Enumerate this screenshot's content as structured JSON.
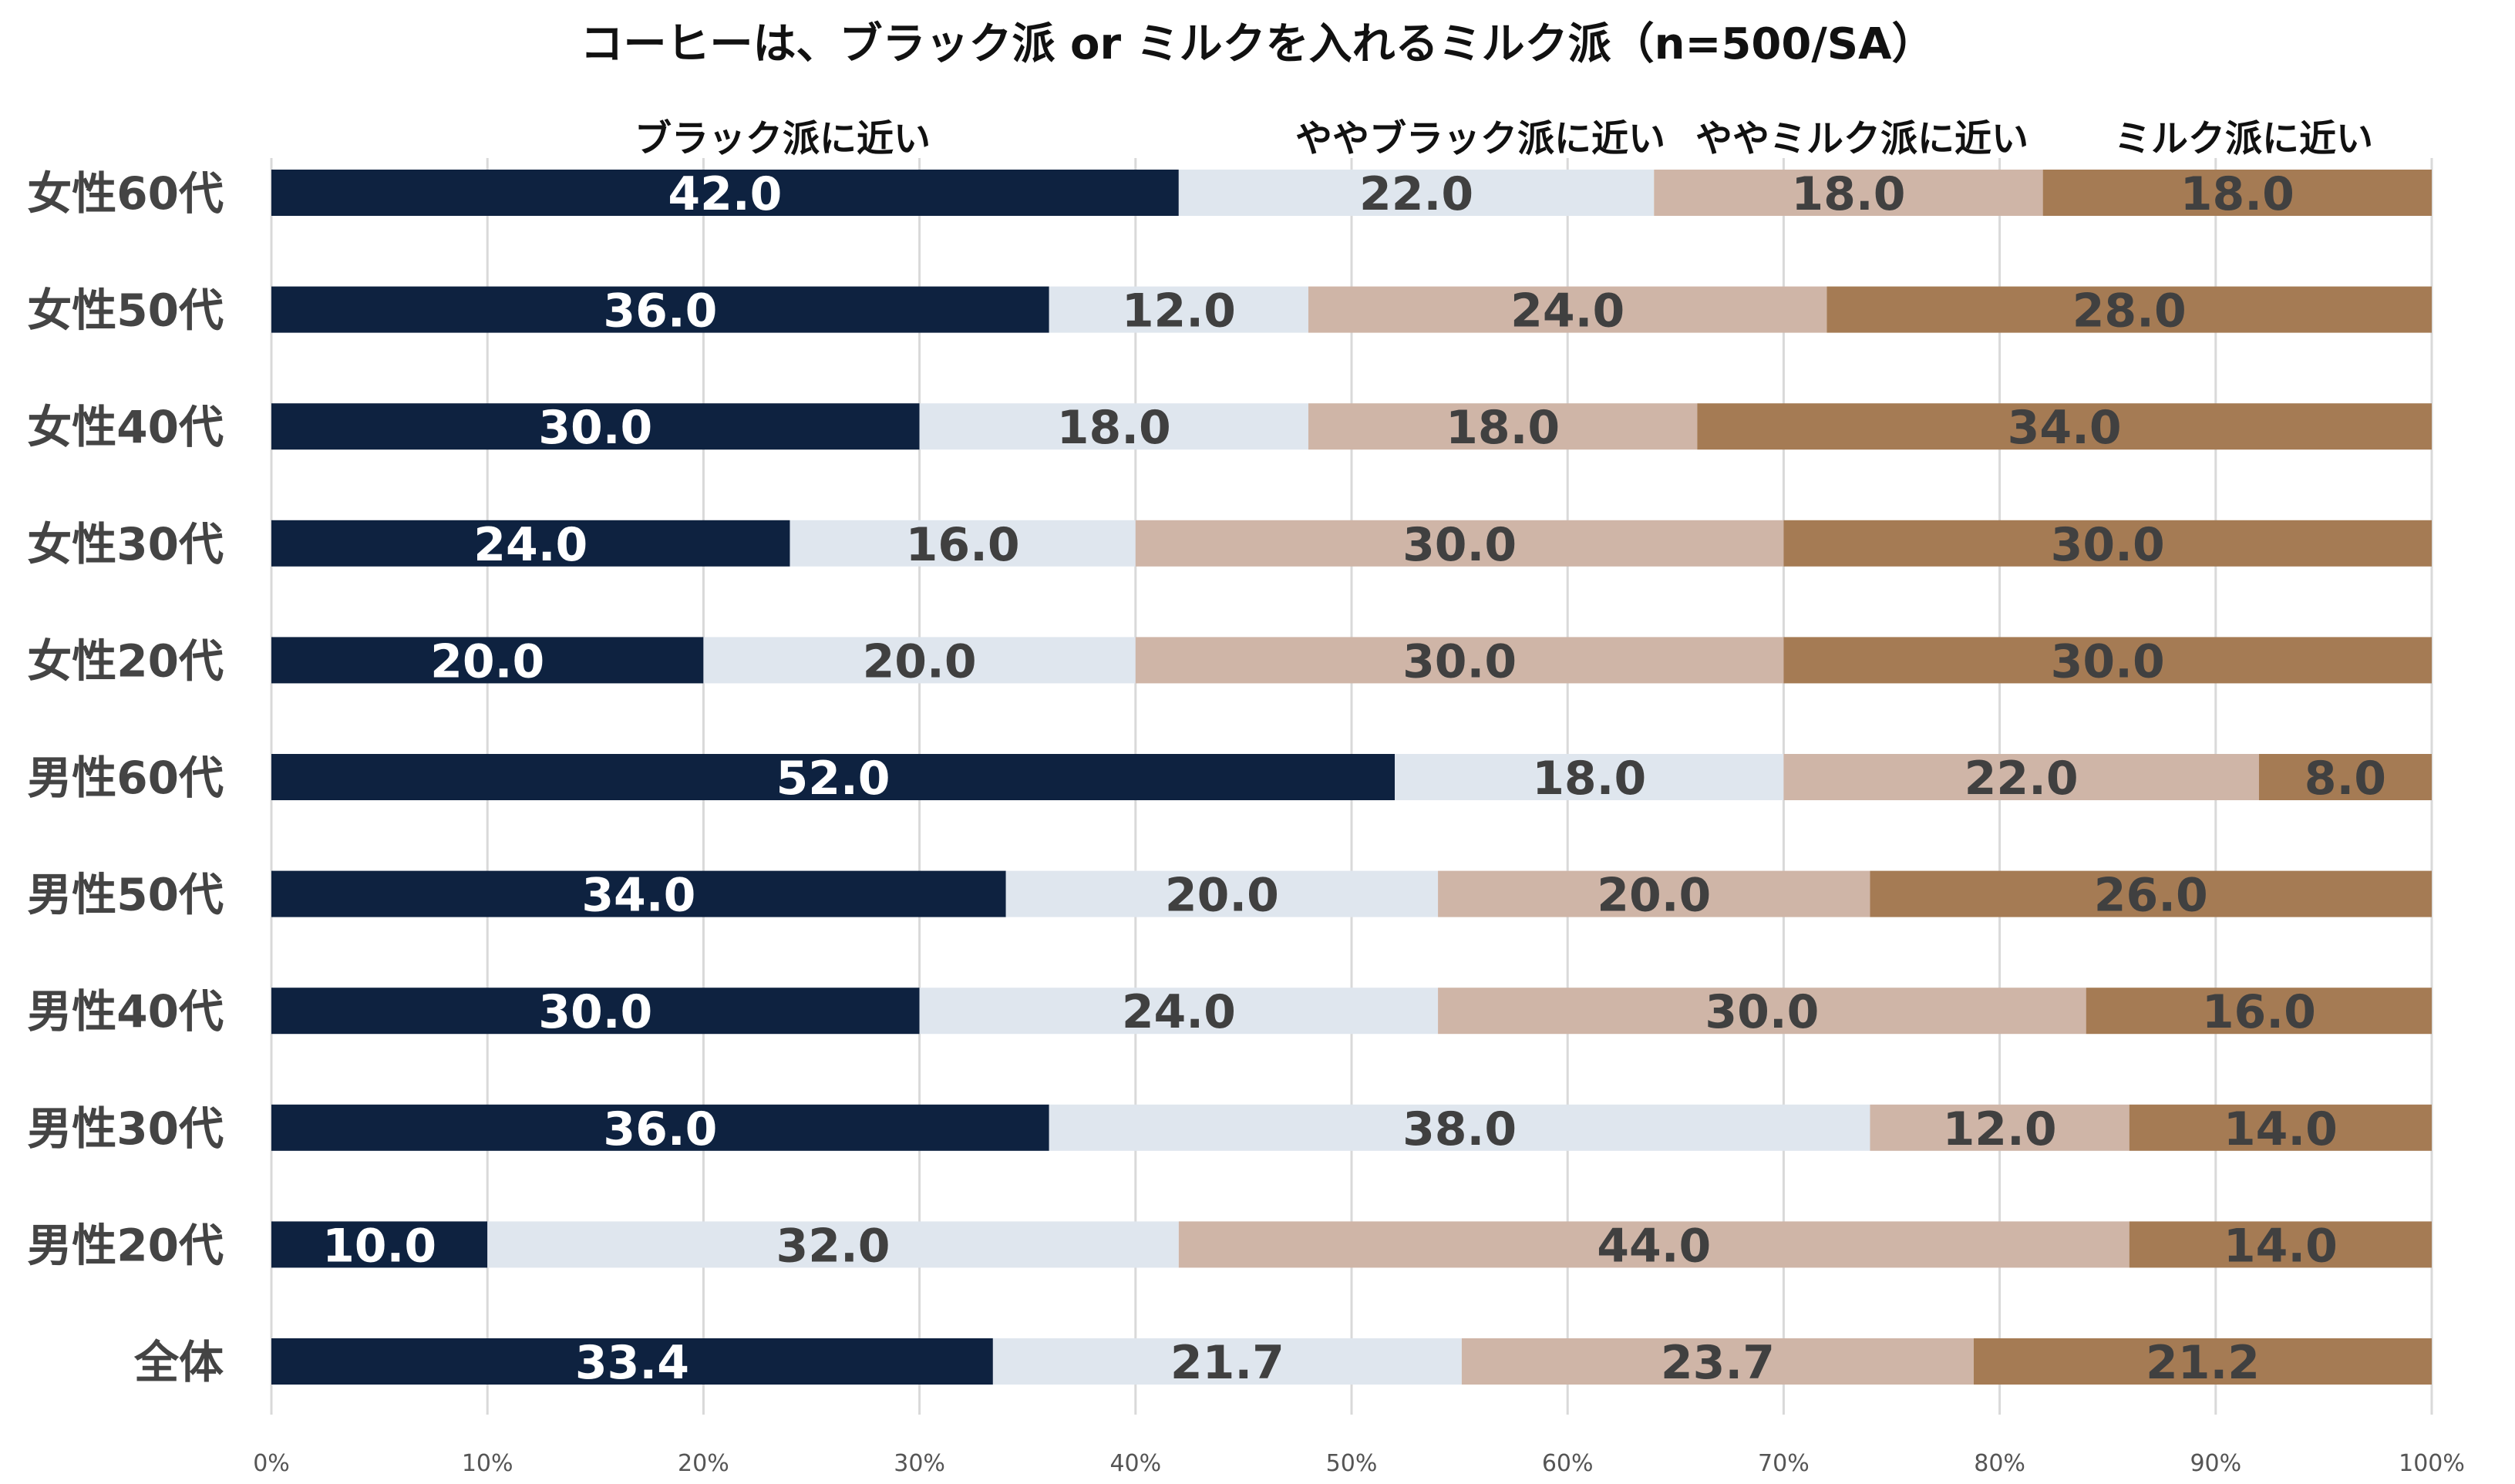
{
  "chart_data": {
    "type": "bar",
    "orientation": "horizontal",
    "stacked": "percent",
    "title": "コーヒーは、ブラック派 or ミルクを入れるミルク派（n=500/SA）",
    "categories": [
      "女性60代",
      "女性50代",
      "女性40代",
      "女性30代",
      "女性20代",
      "男性60代",
      "男性50代",
      "男性40代",
      "男性30代",
      "男性20代",
      "全体"
    ],
    "series": [
      {
        "name": "ブラック派に近い",
        "color": "#0e2240",
        "label_color": "#ffffff",
        "values": [
          42.0,
          36.0,
          30.0,
          24.0,
          20.0,
          52.0,
          34.0,
          30.0,
          36.0,
          10.0,
          33.4
        ],
        "labels": [
          "42.0",
          "36.0",
          "30.0",
          "24.0",
          "20.0",
          "52.0",
          "34.0",
          "30.0",
          "36.0",
          "10.0",
          "33.4"
        ]
      },
      {
        "name": "ややブラック派に近い",
        "color": "#dfe6ee",
        "label_color": "#404040",
        "values": [
          22.0,
          12.0,
          18.0,
          16.0,
          20.0,
          18.0,
          20.0,
          24.0,
          38.0,
          32.0,
          21.7
        ],
        "labels": [
          "22.0",
          "12.0",
          "18.0",
          "16.0",
          "20.0",
          "18.0",
          "20.0",
          "24.0",
          "38.0",
          "32.0",
          "21.7"
        ]
      },
      {
        "name": "ややミルク派に近い",
        "color": "#cfb5a7",
        "label_color": "#404040",
        "values": [
          18.0,
          24.0,
          18.0,
          30.0,
          30.0,
          22.0,
          20.0,
          30.0,
          12.0,
          44.0,
          23.7
        ],
        "labels": [
          "18.0",
          "24.0",
          "18.0",
          "30.0",
          "30.0",
          "22.0",
          "20.0",
          "30.0",
          "12.0",
          "44.0",
          "23.7"
        ]
      },
      {
        "name": "ミルク派に近い",
        "color": "#a57b54",
        "label_color": "#404040",
        "values": [
          18.0,
          28.0,
          34.0,
          30.0,
          30.0,
          8.0,
          26.0,
          16.0,
          14.0,
          14.0,
          21.2
        ],
        "labels": [
          "18.0",
          "28.0",
          "34.0",
          "30.0",
          "30.0",
          "8.0",
          "26.0",
          "16.0",
          "14.0",
          "14.0",
          "21.2"
        ]
      }
    ],
    "xlim": [
      0,
      100
    ],
    "x_ticks": [
      "0%",
      "10%",
      "20%",
      "30%",
      "40%",
      "50%",
      "60%",
      "70%",
      "80%",
      "90%",
      "100%"
    ],
    "grid": true,
    "legend_position": "top"
  }
}
